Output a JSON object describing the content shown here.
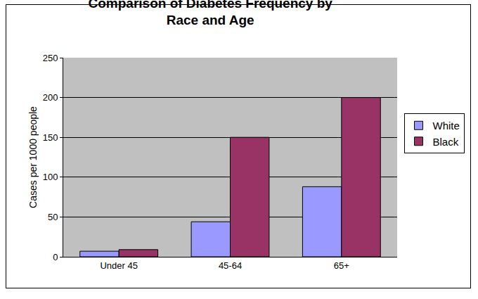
{
  "chart_data": {
    "type": "bar",
    "title": "Comparison of Diabetes Frequency by Race and Age",
    "y_label": "Cases per 1000 people",
    "categories": [
      "Under 45",
      "45-64",
      "65+"
    ],
    "series": [
      {
        "name": "White",
        "color": "#9999ff",
        "values": [
          7,
          44,
          88
        ]
      },
      {
        "name": "Black",
        "color": "#993366",
        "values": [
          9,
          150,
          200
        ]
      }
    ],
    "ylim": [
      0,
      250
    ],
    "yticks": [
      0,
      50,
      100,
      150,
      200,
      250
    ],
    "grid": true,
    "legend": "right"
  }
}
